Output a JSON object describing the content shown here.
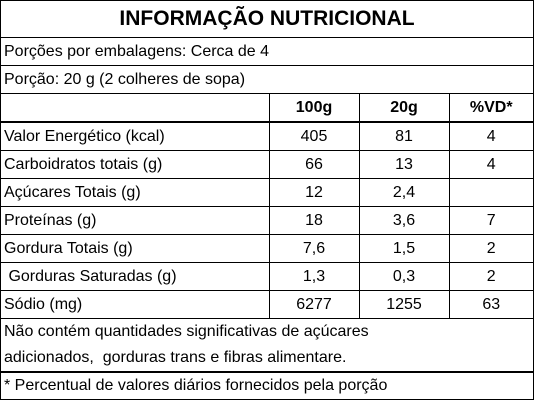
{
  "header": {
    "title": "INFORMAÇÃO NUTRICIONAL",
    "servings": "Porções por embalagens: Cerca de 4",
    "portion": "Porção: 20 g (2 colheres de sopa)"
  },
  "table": {
    "columns": [
      "100g",
      "20g",
      "%VD*"
    ],
    "rows": [
      [
        "Valor Energético (kcal)",
        "405",
        "81",
        "4"
      ],
      [
        "Carboidratos totais (g)",
        "66",
        "13",
        "4"
      ],
      [
        "Açúcares Totais (g)",
        "12",
        "2,4",
        null
      ],
      [
        "Proteínas (g)",
        "18",
        "3,6",
        "7"
      ],
      [
        "Gordura Totais (g)",
        "7,6",
        "1,5",
        "2"
      ],
      [
        " Gorduras Saturadas (g)",
        "1,3",
        "0,3",
        "2"
      ],
      [
        "Sódio (mg)",
        "6277",
        "1255",
        "63"
      ]
    ]
  },
  "notes": [
    "Não contém quantidades significativas de açúcares",
    "adicionados,  gorduras trans e fibras alimentare.",
    "* Percentual de valores diários fornecidos pela porção"
  ]
}
